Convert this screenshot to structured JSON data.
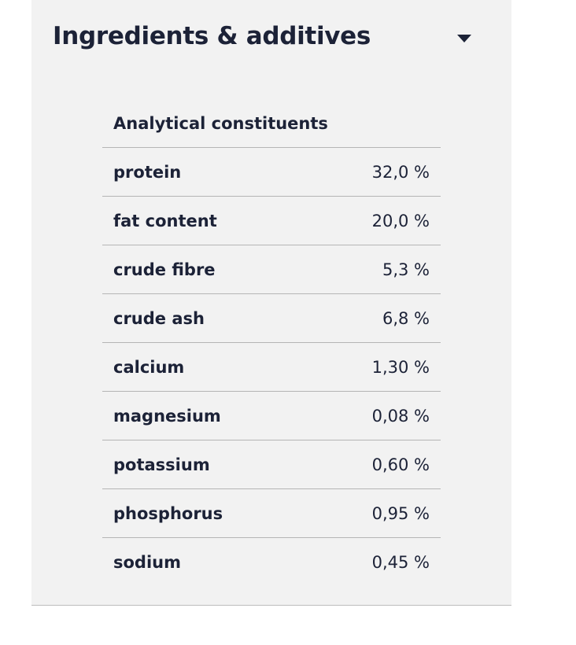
{
  "header": {
    "title": "Ingredients & additives"
  },
  "table": {
    "title": "Analytical constituents",
    "rows": [
      [
        "protein",
        "32,0 %"
      ],
      [
        "fat content",
        "20,0 %"
      ],
      [
        "crude fibre",
        "5,3 %"
      ],
      [
        "crude ash",
        "6,8 %"
      ],
      [
        "calcium",
        "1,30 %"
      ],
      [
        "magnesium",
        "0,08 %"
      ],
      [
        "potassium",
        "0,60 %"
      ],
      [
        "phosphorus",
        "0,95 %"
      ],
      [
        "sodium",
        "0,45 %"
      ]
    ]
  }
}
